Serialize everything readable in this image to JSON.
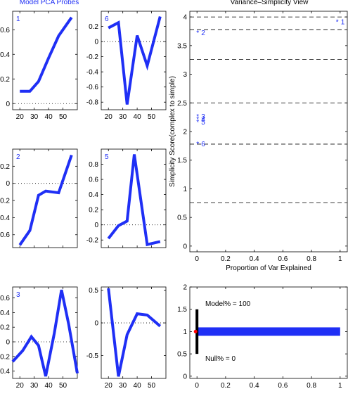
{
  "figure": {
    "left_title": "Model PCA Probes",
    "right_title": "Variance–Simplicity View"
  },
  "chart_data": [
    {
      "type": "line",
      "id": "probe-1",
      "label": "1",
      "x": [
        20,
        27,
        33,
        40,
        47,
        56
      ],
      "values": [
        0.1,
        0.1,
        0.18,
        0.37,
        0.55,
        0.7
      ],
      "xlim": [
        15,
        60
      ],
      "ylim": [
        -0.05,
        0.75
      ],
      "xticks": [
        20,
        30,
        40,
        50
      ],
      "yticks": [
        0,
        0.2,
        0.4,
        0.6
      ],
      "show_xticks": true,
      "color": "#1f2ff5"
    },
    {
      "type": "line",
      "id": "probe-6",
      "label": "6",
      "x": [
        20,
        27,
        33,
        40,
        47,
        56
      ],
      "values": [
        0.18,
        0.25,
        -0.83,
        0.08,
        -0.32,
        0.33
      ],
      "xlim": [
        15,
        60
      ],
      "ylim": [
        -0.9,
        0.4
      ],
      "xticks": [
        20,
        30,
        40,
        50
      ],
      "yticks": [
        -0.8,
        -0.6,
        -0.4,
        -0.2,
        0,
        0.2
      ],
      "show_xticks": true,
      "color": "#1f2ff5"
    },
    {
      "type": "line",
      "id": "probe-2",
      "label": "2",
      "x": [
        20,
        27,
        33,
        38,
        47,
        56
      ],
      "values": [
        -0.72,
        -0.55,
        -0.14,
        -0.09,
        -0.11,
        0.33
      ],
      "xlim": [
        15,
        60
      ],
      "ylim": [
        -0.75,
        0.4
      ],
      "xticks": [
        20,
        30,
        40,
        50
      ],
      "yticks": [
        -0.6,
        -0.4,
        -0.2,
        0,
        0.2
      ],
      "show_xticks": false,
      "color": "#1f2ff5"
    },
    {
      "type": "line",
      "id": "probe-5",
      "label": "5",
      "x": [
        20,
        27,
        33,
        38,
        47,
        56
      ],
      "values": [
        -0.18,
        -0.01,
        0.05,
        0.93,
        -0.26,
        -0.22
      ],
      "xlim": [
        15,
        60
      ],
      "ylim": [
        -0.3,
        1.0
      ],
      "xticks": [
        20,
        30,
        40,
        50
      ],
      "yticks": [
        -0.2,
        0,
        0.2,
        0.4,
        0.6,
        0.8
      ],
      "show_xticks": false,
      "color": "#1f2ff5"
    },
    {
      "type": "line",
      "id": "probe-3",
      "label": "3",
      "x": [
        15,
        22,
        28,
        33,
        38,
        44,
        49,
        54,
        60
      ],
      "values": [
        -0.27,
        -0.12,
        0.07,
        -0.05,
        -0.47,
        0.12,
        0.71,
        0.24,
        -0.43
      ],
      "xlim": [
        15,
        60
      ],
      "ylim": [
        -0.5,
        0.75
      ],
      "xticks": [
        20,
        30,
        40,
        50
      ],
      "yticks": [
        -0.4,
        -0.2,
        0,
        0.2,
        0.4,
        0.6
      ],
      "show_xticks": true,
      "color": "#1f2ff5"
    },
    {
      "type": "line",
      "id": "probe-4",
      "label": "",
      "x": [
        20,
        27,
        33,
        40,
        47,
        56
      ],
      "values": [
        0.53,
        -0.82,
        -0.18,
        0.14,
        0.12,
        -0.05
      ],
      "xlim": [
        15,
        60
      ],
      "ylim": [
        -0.85,
        0.55
      ],
      "xticks": [
        20,
        30,
        40,
        50
      ],
      "yticks": [
        -0.5,
        0,
        0.5
      ],
      "show_xticks": true,
      "color": "#1f2ff5"
    },
    {
      "type": "scatter",
      "id": "variance-simplicity",
      "title": "Variance–Simplicity View",
      "xlabel": "Proportion of Var Explained",
      "ylabel": "Simplicity Score(complex to simple)",
      "xlim": [
        -0.05,
        1.05
      ],
      "ylim": [
        -0.1,
        4.1
      ],
      "xticks": [
        0,
        0.2,
        0.4,
        0.6,
        0.8,
        1
      ],
      "yticks": [
        0,
        0.5,
        1,
        1.5,
        2,
        2.5,
        3,
        3.5,
        4
      ],
      "hlines": [
        4.0,
        3.78,
        3.26,
        2.5,
        1.78,
        0.76
      ],
      "points": [
        {
          "label": "1",
          "x": 0.98,
          "y": 3.92
        },
        {
          "label": "2",
          "x": 0.005,
          "y": 3.73
        },
        {
          "label": "3",
          "x": 0.005,
          "y": 2.27
        },
        {
          "label": "4",
          "x": 0.005,
          "y": 2.22
        },
        {
          "label": "5",
          "x": 0.005,
          "y": 2.17
        },
        {
          "label": "6",
          "x": 0.005,
          "y": 1.79
        }
      ]
    },
    {
      "type": "bar",
      "id": "model-null",
      "orientation": "horizontal",
      "xlim": [
        -0.05,
        1.05
      ],
      "ylim": [
        -0.05,
        2.0
      ],
      "xticks": [
        0,
        0.2,
        0.4,
        0.6,
        0.8,
        1
      ],
      "yticks": [
        0,
        0.5,
        1,
        1.5,
        2
      ],
      "bar": {
        "y": 1,
        "start": 0,
        "end": 1,
        "color": "#1f2ff5"
      },
      "vertical_marker": {
        "x": 0,
        "y_from": 0.5,
        "y_to": 1.5,
        "color": "#000000"
      },
      "null_marker": {
        "x": 0,
        "y": 1,
        "color": "#ff0000"
      },
      "model_label": "Model% = 100",
      "null_label": "Null% = 0"
    }
  ]
}
